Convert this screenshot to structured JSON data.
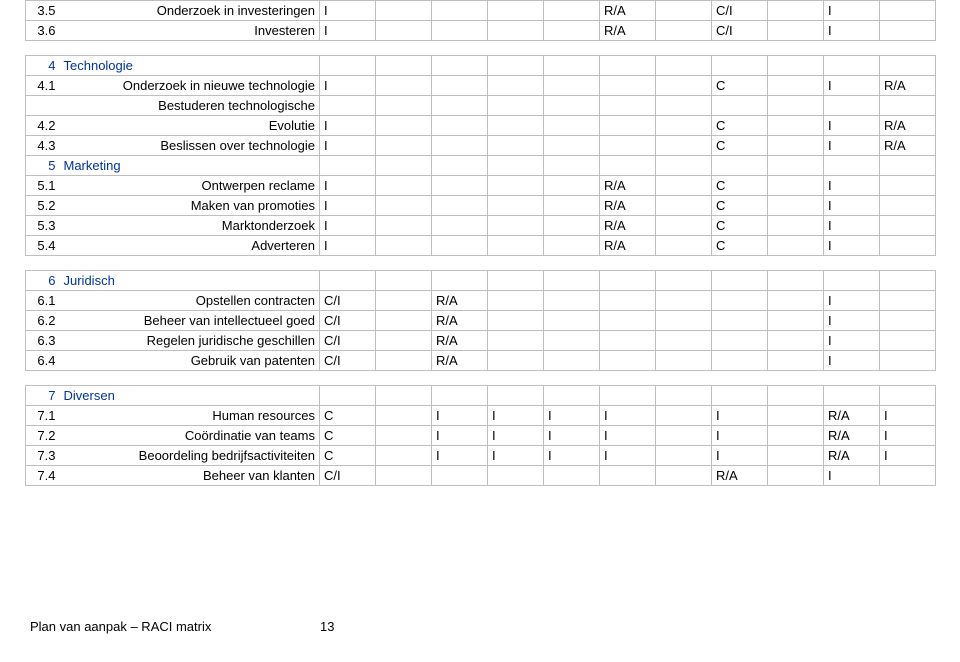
{
  "colors": {
    "border": "#bfbfbf",
    "text": "#000000",
    "header_text": "#003399",
    "bg": "#ffffff"
  },
  "fonts": {
    "family": "Verdana, Geneva, sans-serif",
    "size_body": 13
  },
  "columns": {
    "count": 11
  },
  "sections": [
    {
      "rows": [
        {
          "num": "3.5",
          "desc": "Onderzoek in investeringen",
          "cells": [
            "I",
            "",
            "",
            "",
            "",
            "R/A",
            "",
            "C/I",
            "",
            "I",
            ""
          ]
        },
        {
          "num": "3.6",
          "desc": "Investeren",
          "cells": [
            "I",
            "",
            "",
            "",
            "",
            "R/A",
            "",
            "C/I",
            "",
            "I",
            ""
          ]
        }
      ]
    },
    {
      "header_num": "4",
      "header_label": "Technologie",
      "rows": [
        {
          "num": "4.1",
          "desc": "Onderzoek in nieuwe technologie",
          "cells": [
            "I",
            "",
            "",
            "",
            "",
            "",
            "",
            "C",
            "",
            "I",
            "R/A"
          ]
        },
        {
          "num": "",
          "desc": "Bestuderen technologische",
          "cells": [
            "",
            "",
            "",
            "",
            "",
            "",
            "",
            "",
            "",
            "",
            ""
          ]
        },
        {
          "num": "4.2",
          "desc": "Evolutie",
          "cells": [
            "I",
            "",
            "",
            "",
            "",
            "",
            "",
            "C",
            "",
            "I",
            "R/A"
          ]
        },
        {
          "num": "4.3",
          "desc": "Beslissen over technologie",
          "cells": [
            "I",
            "",
            "",
            "",
            "",
            "",
            "",
            "C",
            "",
            "I",
            "R/A"
          ]
        }
      ],
      "sub_header_num": "5",
      "sub_header_label": "Marketing",
      "sub_rows": [
        {
          "num": "5.1",
          "desc": "Ontwerpen reclame",
          "cells": [
            "I",
            "",
            "",
            "",
            "",
            "R/A",
            "",
            "C",
            "",
            "I",
            ""
          ]
        },
        {
          "num": "5.2",
          "desc": "Maken van promoties",
          "cells": [
            "I",
            "",
            "",
            "",
            "",
            "R/A",
            "",
            "C",
            "",
            "I",
            ""
          ]
        },
        {
          "num": "5.3",
          "desc": "Marktonderzoek",
          "cells": [
            "I",
            "",
            "",
            "",
            "",
            "R/A",
            "",
            "C",
            "",
            "I",
            ""
          ]
        },
        {
          "num": "5.4",
          "desc": "Adverteren",
          "cells": [
            "I",
            "",
            "",
            "",
            "",
            "R/A",
            "",
            "C",
            "",
            "I",
            ""
          ]
        }
      ]
    },
    {
      "header_num": "6",
      "header_label": "Juridisch",
      "rows": [
        {
          "num": "6.1",
          "desc": "Opstellen contracten",
          "cells": [
            "C/I",
            "",
            "R/A",
            "",
            "",
            "",
            "",
            "",
            "",
            "I",
            ""
          ]
        },
        {
          "num": "6.2",
          "desc": "Beheer van intellectueel goed",
          "cells": [
            "C/I",
            "",
            "R/A",
            "",
            "",
            "",
            "",
            "",
            "",
            "I",
            ""
          ]
        },
        {
          "num": "6.3",
          "desc": "Regelen juridische geschillen",
          "cells": [
            "C/I",
            "",
            "R/A",
            "",
            "",
            "",
            "",
            "",
            "",
            "I",
            ""
          ]
        },
        {
          "num": "6.4",
          "desc": "Gebruik van patenten",
          "cells": [
            "C/I",
            "",
            "R/A",
            "",
            "",
            "",
            "",
            "",
            "",
            "I",
            ""
          ]
        }
      ]
    },
    {
      "header_num": "7",
      "header_label": "Diversen",
      "rows": [
        {
          "num": "7.1",
          "desc": "Human resources",
          "cells": [
            "C",
            "",
            "I",
            "I",
            "I",
            "I",
            "",
            "I",
            "",
            "R/A",
            "I"
          ]
        },
        {
          "num": "7.2",
          "desc": "Coördinatie van teams",
          "cells": [
            "C",
            "",
            "I",
            "I",
            "I",
            "I",
            "",
            "I",
            "",
            "R/A",
            "I"
          ]
        },
        {
          "num": "7.3",
          "desc": "Beoordeling bedrijfsactiviteiten",
          "cells": [
            "C",
            "",
            "I",
            "I",
            "I",
            "I",
            "",
            "I",
            "",
            "R/A",
            "I"
          ]
        },
        {
          "num": "7.4",
          "desc": "Beheer van klanten",
          "cells": [
            "C/I",
            "",
            "",
            "",
            "",
            "",
            "",
            "R/A",
            "",
            "I",
            ""
          ]
        }
      ]
    }
  ],
  "footer": {
    "text": "Plan van aanpak – RACI matrix",
    "page": "13"
  }
}
